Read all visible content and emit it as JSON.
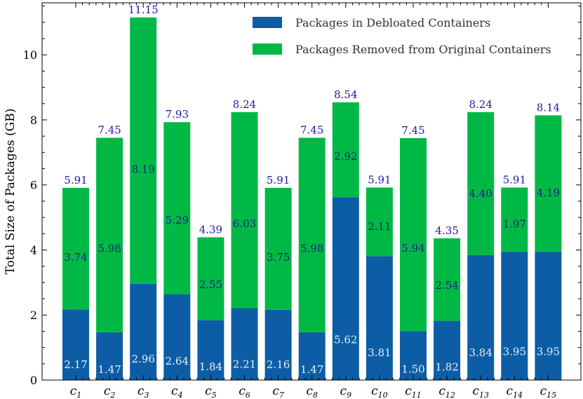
{
  "chart_data": {
    "type": "bar",
    "stacked": true,
    "title": "",
    "xlabel": "",
    "ylabel": "Total Size of Packages (GB)",
    "ylim": [
      0,
      11.6
    ],
    "yticks": [
      0,
      2,
      4,
      6,
      8,
      10
    ],
    "categories": [
      {
        "base": "c",
        "sub": "1"
      },
      {
        "base": "c",
        "sub": "2"
      },
      {
        "base": "c",
        "sub": "3"
      },
      {
        "base": "c",
        "sub": "4"
      },
      {
        "base": "c",
        "sub": "5"
      },
      {
        "base": "c",
        "sub": "6"
      },
      {
        "base": "c",
        "sub": "7"
      },
      {
        "base": "c",
        "sub": "8"
      },
      {
        "base": "c",
        "sub": "9"
      },
      {
        "base": "c",
        "sub": "10"
      },
      {
        "base": "c",
        "sub": "11"
      },
      {
        "base": "c",
        "sub": "12"
      },
      {
        "base": "c",
        "sub": "13"
      },
      {
        "base": "c",
        "sub": "14"
      },
      {
        "base": "c",
        "sub": "15"
      }
    ],
    "series": [
      {
        "name": "Packages in Debloated Containers",
        "color": "#0c5da5",
        "values": [
          2.17,
          1.47,
          2.96,
          2.64,
          1.84,
          2.21,
          2.16,
          1.47,
          5.62,
          3.81,
          1.5,
          1.82,
          3.84,
          3.95,
          3.95
        ],
        "label_color": "#e6eef8"
      },
      {
        "name": "Packages Removed from Original Containers",
        "color": "#00b945",
        "values": [
          3.74,
          5.98,
          8.19,
          5.29,
          2.55,
          6.03,
          3.75,
          5.98,
          2.92,
          2.11,
          5.94,
          2.54,
          4.4,
          1.97,
          4.19
        ],
        "label_color": "#1a237e"
      }
    ],
    "totals": [
      5.91,
      7.45,
      11.15,
      7.93,
      4.39,
      8.24,
      5.91,
      7.45,
      8.54,
      5.91,
      7.45,
      4.35,
      8.24,
      5.91,
      8.14
    ],
    "total_label_color": "#1a1aa6",
    "legend": "top-right",
    "grid": false
  }
}
